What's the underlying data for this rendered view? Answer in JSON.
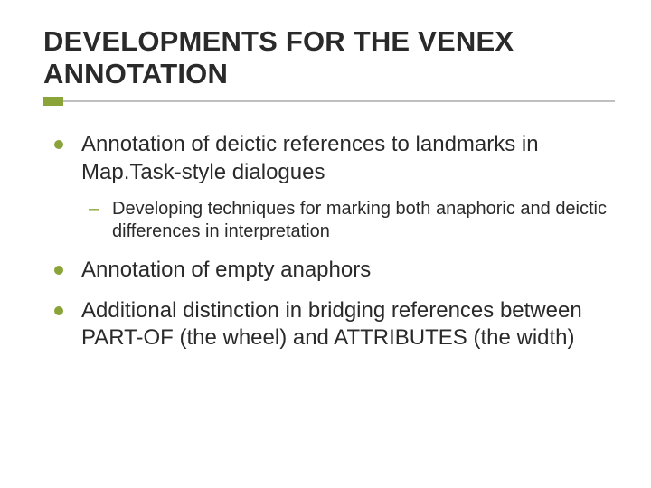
{
  "slide": {
    "title": "DEVELOPMENTS FOR THE VENEX ANNOTATION",
    "accent_color": "#8aa43a",
    "rule_color": "#bfbfbf",
    "text_color": "#2a2a2a",
    "background_color": "#ffffff",
    "title_fontsize": 31,
    "body_fontsize": 24,
    "sub_fontsize": 20,
    "bullets": [
      {
        "text": "Annotation of deictic references to landmarks in Map.Task-style dialogues",
        "children": [
          {
            "text": "Developing techniques for marking both anaphoric and deictic differences in interpretation"
          }
        ]
      },
      {
        "text": "Annotation of empty anaphors",
        "children": []
      },
      {
        "text": "Additional distinction in bridging references between PART-OF (the wheel) and ATTRIBUTES  (the width)",
        "children": []
      }
    ]
  }
}
